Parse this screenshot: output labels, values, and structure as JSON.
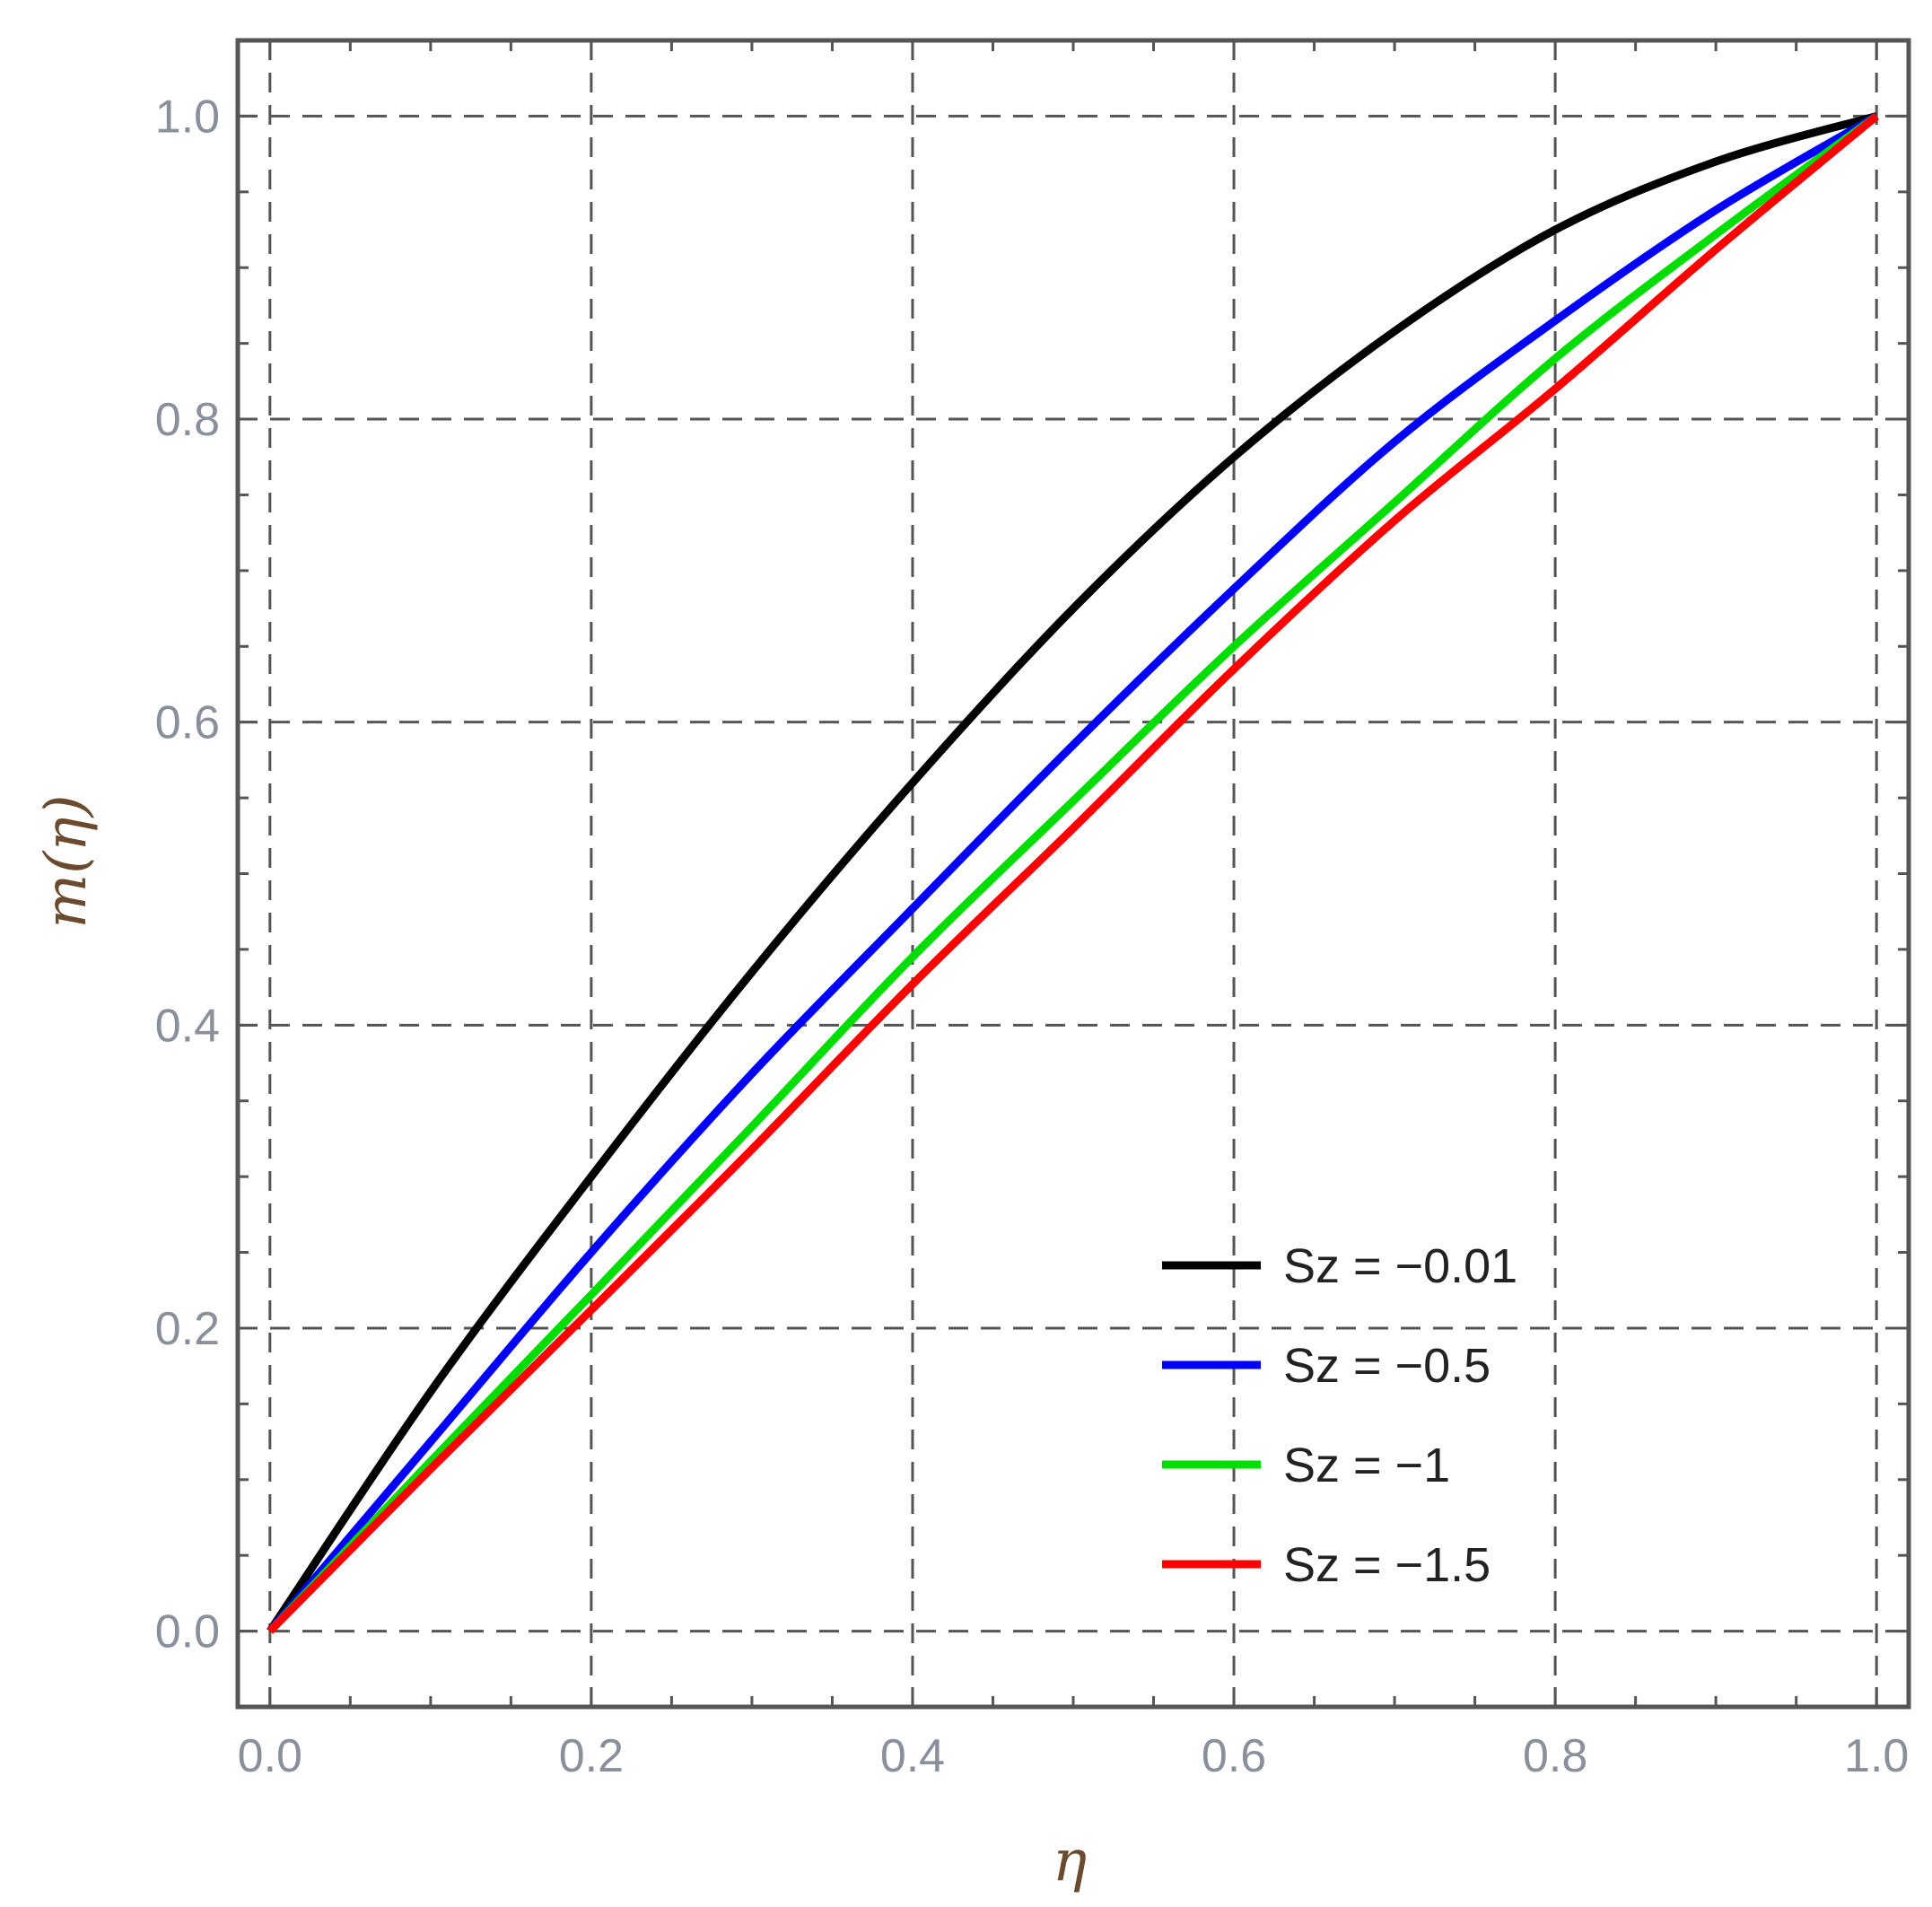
{
  "chart_data": {
    "type": "line",
    "title": "",
    "xlabel": "η",
    "ylabel": "m(η)",
    "xlim": [
      -0.02,
      1.02
    ],
    "ylim": [
      -0.05,
      1.05
    ],
    "x_ticks": [
      "0.0",
      "0.2",
      "0.4",
      "0.6",
      "0.8",
      "1.0"
    ],
    "y_ticks": [
      "0.0",
      "0.2",
      "0.4",
      "0.6",
      "0.8",
      "1.0"
    ],
    "grid": true,
    "legend_position": "bottom-right",
    "x": [
      0.0,
      0.1,
      0.2,
      0.3,
      0.4,
      0.5,
      0.6,
      0.7,
      0.8,
      0.9,
      1.0
    ],
    "series": [
      {
        "name": "Sz = −0.01",
        "color": "#000000",
        "values": [
          0.0,
          0.158,
          0.3,
          0.435,
          0.56,
          0.675,
          0.775,
          0.858,
          0.925,
          0.97,
          1.0
        ]
      },
      {
        "name": "Sz = −0.5",
        "color": "#0000ff",
        "values": [
          0.0,
          0.125,
          0.25,
          0.368,
          0.477,
          0.585,
          0.688,
          0.785,
          0.865,
          0.938,
          1.0
        ]
      },
      {
        "name": "Sz = −1",
        "color": "#00dd00",
        "values": [
          0.0,
          0.112,
          0.222,
          0.333,
          0.445,
          0.548,
          0.65,
          0.745,
          0.84,
          0.922,
          1.0
        ]
      },
      {
        "name": "Sz = −1.5",
        "color": "#ff0000",
        "values": [
          0.0,
          0.107,
          0.212,
          0.318,
          0.427,
          0.53,
          0.635,
          0.733,
          0.82,
          0.912,
          1.0
        ]
      }
    ]
  }
}
